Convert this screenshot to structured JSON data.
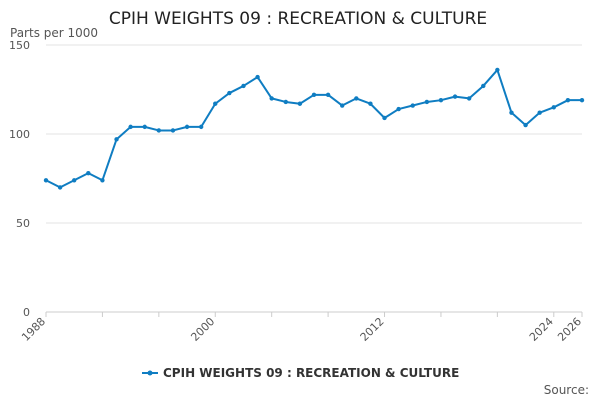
{
  "chart_data": {
    "type": "line",
    "title": "CPIH WEIGHTS 09 : RECREATION & CULTURE",
    "ylabel": "Parts per 1000",
    "ylim": [
      0,
      150
    ],
    "yticks": [
      0,
      50,
      100,
      150
    ],
    "xlim": [
      1988,
      2026
    ],
    "xtick_labels": [
      1988,
      2000,
      2012,
      2024,
      2026
    ],
    "grid": "horizontal",
    "legend_position": "bottom",
    "series": [
      {
        "name": "CPIH WEIGHTS 09 : RECREATION & CULTURE",
        "color": "#0f7dc2",
        "x": [
          1988,
          1989,
          1990,
          1991,
          1992,
          1993,
          1994,
          1995,
          1996,
          1997,
          1998,
          1999,
          2000,
          2001,
          2002,
          2003,
          2004,
          2005,
          2006,
          2007,
          2008,
          2009,
          2010,
          2011,
          2012,
          2013,
          2014,
          2015,
          2016,
          2017,
          2018,
          2019,
          2020,
          2021,
          2022,
          2023,
          2024,
          2025,
          2026
        ],
        "values": [
          74,
          70,
          74,
          78,
          74,
          97,
          104,
          104,
          102,
          102,
          104,
          104,
          117,
          123,
          127,
          132,
          120,
          118,
          117,
          122,
          122,
          116,
          120,
          117,
          109,
          114,
          116,
          118,
          119,
          121,
          120,
          127,
          136,
          112,
          105,
          112,
          115,
          119,
          119
        ]
      }
    ]
  },
  "source_label": "Source:"
}
